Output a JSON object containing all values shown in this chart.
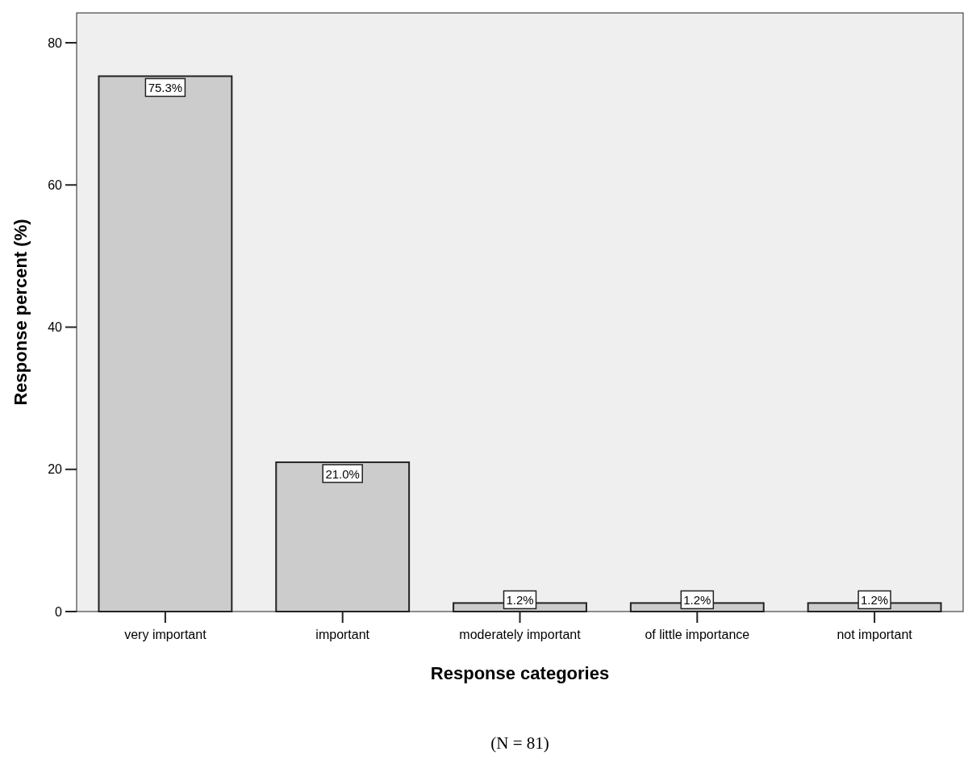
{
  "chart_data": {
    "type": "bar",
    "xlabel": "Response categories",
    "ylabel": "Response percent (%)",
    "categories": [
      "very important",
      "important",
      "moderately important",
      "of little importance",
      "not important"
    ],
    "values": [
      75.3,
      21.0,
      1.2,
      1.2,
      1.2
    ],
    "value_labels": [
      "75.3%",
      "21.0%",
      "1.2%",
      "1.2%",
      "1.2%"
    ],
    "color": "#cccccc",
    "ylim": [
      0,
      84.2
    ],
    "yticks": [
      0,
      20,
      40,
      60,
      80
    ],
    "grid": false,
    "annotations": [
      "(N = 81)"
    ]
  }
}
